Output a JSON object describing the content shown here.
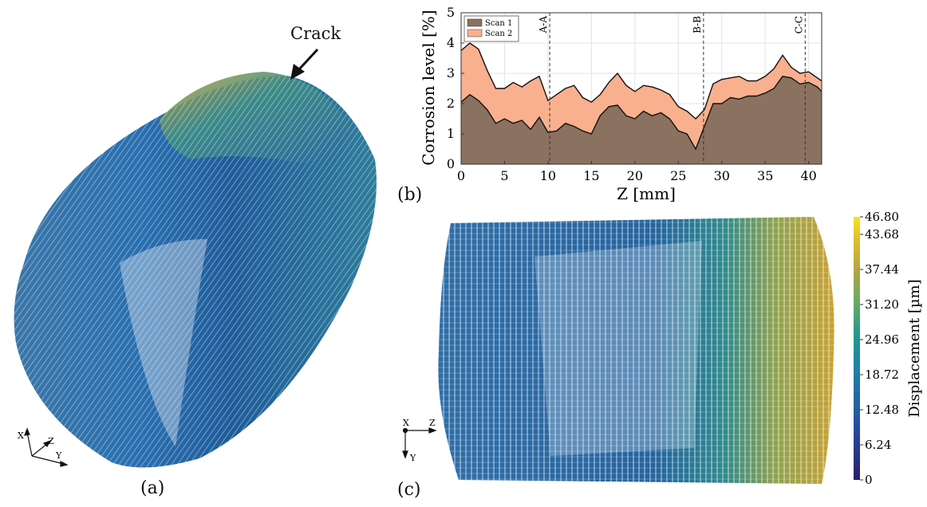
{
  "figure": {
    "panels": [
      {
        "id": "a",
        "label": "(a)"
      },
      {
        "id": "b",
        "label": "(b)"
      },
      {
        "id": "c",
        "label": "(c)"
      }
    ],
    "panel_a": {
      "annotation": "Crack",
      "axes_triad": [
        "X",
        "Z",
        "Y"
      ]
    },
    "panel_c": {
      "axes_triad": [
        "X",
        "Z",
        "Y"
      ]
    },
    "colorbar": {
      "label": "Displacement [µm]",
      "ticks": [
        "46.80",
        "43.68",
        "37.44",
        "31.20",
        "24.96",
        "18.72",
        "12.48",
        "6.24",
        "0"
      ],
      "colors": [
        "#f1e51d",
        "#d9b43a",
        "#b4a040",
        "#7aa75c",
        "#2c9a8c",
        "#1f77a5",
        "#285a9d",
        "#27306f"
      ]
    }
  },
  "chart_data": {
    "type": "area",
    "title": "",
    "xlabel": "Z [mm]",
    "ylabel": "Corrosion level [%]",
    "xlim": [
      0,
      41.5
    ],
    "ylim": [
      0,
      5
    ],
    "xticks": [
      0,
      5,
      10,
      15,
      20,
      25,
      30,
      35,
      40
    ],
    "yticks": [
      0,
      1,
      2,
      3,
      4,
      5
    ],
    "grid": true,
    "legend_position": "top-left",
    "series": [
      {
        "name": "Scan 1",
        "color": "#8b715f",
        "x": [
          0,
          1,
          2,
          3,
          4,
          5,
          6,
          7,
          8,
          9,
          10,
          11,
          12,
          13,
          14,
          15,
          16,
          17,
          18,
          19,
          20,
          21,
          22,
          23,
          24,
          25,
          26,
          27,
          28,
          29,
          30,
          31,
          32,
          33,
          34,
          35,
          36,
          37,
          38,
          39,
          40,
          41,
          41.5
        ],
        "values": [
          2.05,
          2.3,
          2.1,
          1.8,
          1.35,
          1.5,
          1.35,
          1.45,
          1.15,
          1.55,
          1.05,
          1.1,
          1.35,
          1.25,
          1.1,
          1.0,
          1.6,
          1.9,
          1.95,
          1.6,
          1.5,
          1.75,
          1.6,
          1.7,
          1.5,
          1.1,
          1.0,
          0.5,
          1.25,
          2.0,
          2.0,
          2.2,
          2.15,
          2.25,
          2.25,
          2.35,
          2.5,
          2.9,
          2.85,
          2.65,
          2.7,
          2.55,
          2.4
        ]
      },
      {
        "name": "Scan 2",
        "color": "#f9b08e",
        "x": [
          0,
          1,
          2,
          3,
          4,
          5,
          6,
          7,
          8,
          9,
          10,
          11,
          12,
          13,
          14,
          15,
          16,
          17,
          18,
          19,
          20,
          21,
          22,
          23,
          24,
          25,
          26,
          27,
          28,
          29,
          30,
          31,
          32,
          33,
          34,
          35,
          36,
          37,
          38,
          39,
          40,
          41,
          41.5
        ],
        "values": [
          3.75,
          4.0,
          3.8,
          3.1,
          2.5,
          2.5,
          2.7,
          2.55,
          2.75,
          2.9,
          2.1,
          2.3,
          2.5,
          2.6,
          2.2,
          2.05,
          2.3,
          2.7,
          3.0,
          2.6,
          2.4,
          2.6,
          2.55,
          2.45,
          2.3,
          1.9,
          1.75,
          1.5,
          1.8,
          2.65,
          2.8,
          2.85,
          2.9,
          2.75,
          2.75,
          2.9,
          3.15,
          3.6,
          3.2,
          3.0,
          3.05,
          2.85,
          2.75
        ]
      }
    ],
    "annotations": [
      {
        "text": "A-A",
        "x": 10.2
      },
      {
        "text": "B-B",
        "x": 27.9
      },
      {
        "text": "C-C",
        "x": 39.6
      }
    ]
  }
}
